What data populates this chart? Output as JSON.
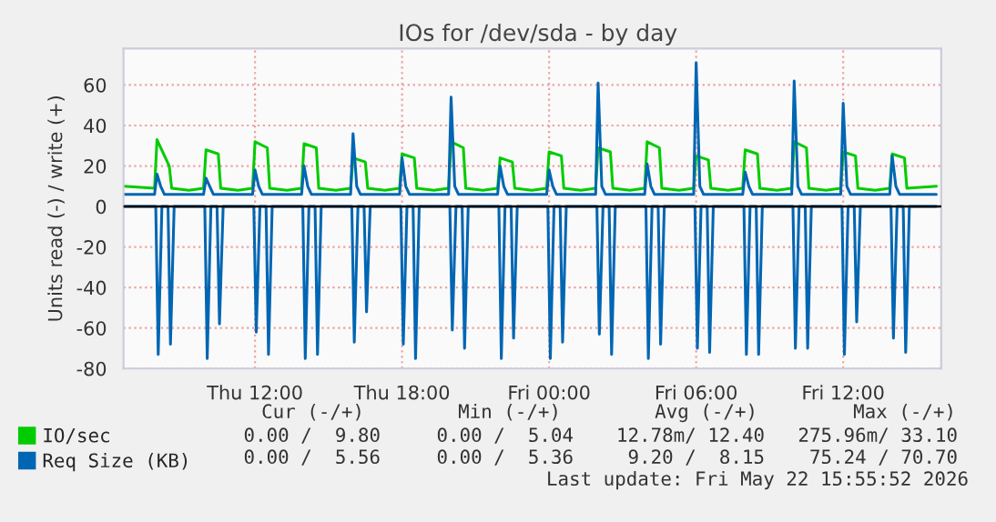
{
  "chart_data": {
    "type": "line",
    "title": "IOs for /dev/sda - by day",
    "ylabel": "Units read (-) / write (+)",
    "xlim": [
      "2026-05-21T06:38",
      "2026-05-22T16:00"
    ],
    "xticks": [
      {
        "value": "2026-05-21T12:00",
        "label": "Thu 12:00"
      },
      {
        "value": "2026-05-21T18:00",
        "label": "Thu 18:00"
      },
      {
        "value": "2026-05-22T00:00",
        "label": "Fri 00:00"
      },
      {
        "value": "2026-05-22T06:00",
        "label": "Fri 06:00"
      },
      {
        "value": "2026-05-22T12:00",
        "label": "Fri 12:00"
      }
    ],
    "ylim": [
      -80,
      78
    ],
    "yticks": [
      -80,
      -60,
      -40,
      -20,
      0,
      20,
      40,
      60
    ],
    "grid": true,
    "legend": "bottom",
    "ref_lines": [
      {
        "axis": "y",
        "value": 0,
        "color": "#000000"
      }
    ],
    "series": [
      {
        "name": "IO/sec",
        "color": "#00cc00",
        "x": [
          "2026-05-21T06:38",
          "2026-05-21T07:54",
          "2026-05-21T08:00",
          "2026-05-21T08:30",
          "2026-05-21T08:36",
          "2026-05-21T09:18",
          "2026-05-21T09:54",
          "2026-05-21T10:00",
          "2026-05-21T10:30",
          "2026-05-21T10:36",
          "2026-05-21T11:18",
          "2026-05-21T11:54",
          "2026-05-21T12:00",
          "2026-05-21T12:30",
          "2026-05-21T12:36",
          "2026-05-21T13:18",
          "2026-05-21T13:54",
          "2026-05-21T14:00",
          "2026-05-21T14:30",
          "2026-05-21T14:36",
          "2026-05-21T15:18",
          "2026-05-21T15:54",
          "2026-05-21T16:00",
          "2026-05-21T16:30",
          "2026-05-21T16:36",
          "2026-05-21T17:18",
          "2026-05-21T17:54",
          "2026-05-21T18:00",
          "2026-05-21T18:30",
          "2026-05-21T18:36",
          "2026-05-21T19:18",
          "2026-05-21T19:54",
          "2026-05-21T20:00",
          "2026-05-21T20:30",
          "2026-05-21T20:36",
          "2026-05-21T21:18",
          "2026-05-21T21:54",
          "2026-05-21T22:00",
          "2026-05-21T22:30",
          "2026-05-21T22:36",
          "2026-05-21T23:18",
          "2026-05-21T23:54",
          "2026-05-22T00:00",
          "2026-05-22T00:30",
          "2026-05-22T00:36",
          "2026-05-22T01:18",
          "2026-05-22T01:54",
          "2026-05-22T02:00",
          "2026-05-22T02:30",
          "2026-05-22T02:36",
          "2026-05-22T03:18",
          "2026-05-22T03:54",
          "2026-05-22T04:00",
          "2026-05-22T04:30",
          "2026-05-22T04:36",
          "2026-05-22T05:18",
          "2026-05-22T05:54",
          "2026-05-22T06:00",
          "2026-05-22T06:30",
          "2026-05-22T06:36",
          "2026-05-22T07:18",
          "2026-05-22T07:54",
          "2026-05-22T08:00",
          "2026-05-22T08:30",
          "2026-05-22T08:36",
          "2026-05-22T09:18",
          "2026-05-22T09:54",
          "2026-05-22T10:00",
          "2026-05-22T10:30",
          "2026-05-22T10:36",
          "2026-05-22T11:18",
          "2026-05-22T11:54",
          "2026-05-22T12:00",
          "2026-05-22T12:30",
          "2026-05-22T12:36",
          "2026-05-22T13:18",
          "2026-05-22T13:54",
          "2026-05-22T14:00",
          "2026-05-22T14:30",
          "2026-05-22T14:36",
          "2026-05-22T15:48"
        ],
        "values": [
          10,
          9,
          33,
          20,
          9,
          8,
          9,
          28,
          26,
          9,
          8,
          9,
          32,
          29,
          9,
          8,
          9,
          31,
          29,
          9,
          8,
          9,
          24,
          22,
          9,
          8,
          9,
          26,
          24,
          9,
          8,
          9,
          32,
          29,
          9,
          8,
          9,
          24,
          22,
          9,
          8,
          9,
          27,
          25,
          9,
          8,
          9,
          29,
          27,
          9,
          8,
          9,
          32,
          29,
          9,
          8,
          9,
          25,
          23,
          9,
          8,
          9,
          28,
          26,
          9,
          8,
          9,
          32,
          29,
          9,
          8,
          9,
          27,
          25,
          9,
          8,
          9,
          26,
          24,
          9,
          10
        ]
      },
      {
        "name": "Req Size (KB)",
        "color": "#0066b3",
        "x": [
          "2026-05-21T06:38",
          "2026-05-21T07:54",
          "2026-05-21T08:00",
          "2026-05-21T08:09",
          "2026-05-21T08:18",
          "2026-05-21T09:54",
          "2026-05-21T10:00",
          "2026-05-21T10:09",
          "2026-05-21T10:18",
          "2026-05-21T11:54",
          "2026-05-21T12:00",
          "2026-05-21T12:09",
          "2026-05-21T12:18",
          "2026-05-21T13:54",
          "2026-05-21T14:00",
          "2026-05-21T14:09",
          "2026-05-21T14:18",
          "2026-05-21T15:54",
          "2026-05-21T16:00",
          "2026-05-21T16:09",
          "2026-05-21T16:18",
          "2026-05-21T17:54",
          "2026-05-21T18:00",
          "2026-05-21T18:09",
          "2026-05-21T18:18",
          "2026-05-21T19:54",
          "2026-05-21T20:00",
          "2026-05-21T20:09",
          "2026-05-21T20:18",
          "2026-05-21T21:54",
          "2026-05-21T22:00",
          "2026-05-21T22:09",
          "2026-05-21T22:18",
          "2026-05-21T23:54",
          "2026-05-22T00:00",
          "2026-05-22T00:09",
          "2026-05-22T00:18",
          "2026-05-22T01:54",
          "2026-05-22T02:00",
          "2026-05-22T02:09",
          "2026-05-22T02:18",
          "2026-05-22T03:54",
          "2026-05-22T04:00",
          "2026-05-22T04:09",
          "2026-05-22T04:18",
          "2026-05-22T05:54",
          "2026-05-22T06:00",
          "2026-05-22T06:09",
          "2026-05-22T06:18",
          "2026-05-22T07:54",
          "2026-05-22T08:00",
          "2026-05-22T08:09",
          "2026-05-22T08:18",
          "2026-05-22T09:54",
          "2026-05-22T10:00",
          "2026-05-22T10:09",
          "2026-05-22T10:18",
          "2026-05-22T11:54",
          "2026-05-22T12:00",
          "2026-05-22T12:09",
          "2026-05-22T12:18",
          "2026-05-22T13:54",
          "2026-05-22T14:00",
          "2026-05-22T14:09",
          "2026-05-22T14:18",
          "2026-05-22T15:48"
        ],
        "values": [
          6,
          6,
          16,
          10,
          6,
          6,
          14,
          10,
          6,
          6,
          18,
          10,
          6,
          6,
          20,
          10,
          6,
          6,
          36,
          10,
          6,
          6,
          24,
          10,
          6,
          6,
          54,
          10,
          6,
          6,
          20,
          10,
          6,
          6,
          18,
          10,
          6,
          6,
          61,
          10,
          6,
          6,
          21,
          10,
          6,
          6,
          71,
          10,
          6,
          6,
          17,
          10,
          6,
          6,
          62,
          10,
          6,
          6,
          51,
          10,
          6,
          6,
          25,
          10,
          6,
          6
        ]
      },
      {
        "color": "#0066b3",
        "x": [
          "2026-05-21T06:38",
          "2026-05-21T07:57",
          "2026-05-21T08:03",
          "2026-05-21T08:12",
          "2026-05-21T08:27",
          "2026-05-21T08:33",
          "2026-05-21T08:42",
          "2026-05-21T09:57",
          "2026-05-21T10:03",
          "2026-05-21T10:12",
          "2026-05-21T10:27",
          "2026-05-21T10:33",
          "2026-05-21T10:42",
          "2026-05-21T11:57",
          "2026-05-21T12:03",
          "2026-05-21T12:12",
          "2026-05-21T12:27",
          "2026-05-21T12:33",
          "2026-05-21T12:42",
          "2026-05-21T13:57",
          "2026-05-21T14:03",
          "2026-05-21T14:12",
          "2026-05-21T14:27",
          "2026-05-21T14:33",
          "2026-05-21T14:42",
          "2026-05-21T15:57",
          "2026-05-21T16:03",
          "2026-05-21T16:12",
          "2026-05-21T16:27",
          "2026-05-21T16:33",
          "2026-05-21T16:42",
          "2026-05-21T17:57",
          "2026-05-21T18:03",
          "2026-05-21T18:12",
          "2026-05-21T18:27",
          "2026-05-21T18:33",
          "2026-05-21T18:42",
          "2026-05-21T19:57",
          "2026-05-21T20:03",
          "2026-05-21T20:12",
          "2026-05-21T20:27",
          "2026-05-21T20:33",
          "2026-05-21T20:42",
          "2026-05-21T21:57",
          "2026-05-21T22:03",
          "2026-05-21T22:12",
          "2026-05-21T22:27",
          "2026-05-21T22:33",
          "2026-05-21T22:42",
          "2026-05-21T23:57",
          "2026-05-22T00:03",
          "2026-05-22T00:12",
          "2026-05-22T00:27",
          "2026-05-22T00:33",
          "2026-05-22T00:42",
          "2026-05-22T01:57",
          "2026-05-22T02:03",
          "2026-05-22T02:12",
          "2026-05-22T02:27",
          "2026-05-22T02:33",
          "2026-05-22T02:42",
          "2026-05-22T03:57",
          "2026-05-22T04:03",
          "2026-05-22T04:12",
          "2026-05-22T04:27",
          "2026-05-22T04:33",
          "2026-05-22T04:42",
          "2026-05-22T05:57",
          "2026-05-22T06:03",
          "2026-05-22T06:12",
          "2026-05-22T06:27",
          "2026-05-22T06:33",
          "2026-05-22T06:42",
          "2026-05-22T07:57",
          "2026-05-22T08:03",
          "2026-05-22T08:12",
          "2026-05-22T08:27",
          "2026-05-22T08:33",
          "2026-05-22T08:42",
          "2026-05-22T09:57",
          "2026-05-22T10:03",
          "2026-05-22T10:12",
          "2026-05-22T10:27",
          "2026-05-22T10:33",
          "2026-05-22T10:42",
          "2026-05-22T11:57",
          "2026-05-22T12:03",
          "2026-05-22T12:12",
          "2026-05-22T12:27",
          "2026-05-22T12:33",
          "2026-05-22T12:42",
          "2026-05-22T13:57",
          "2026-05-22T14:03",
          "2026-05-22T14:12",
          "2026-05-22T14:27",
          "2026-05-22T14:33",
          "2026-05-22T14:42",
          "2026-05-22T15:48"
        ],
        "values": [
          0,
          0,
          -73,
          0,
          0,
          -68,
          0,
          0,
          -75,
          0,
          0,
          -58,
          0,
          0,
          -62,
          0,
          0,
          -73,
          0,
          0,
          -75,
          0,
          0,
          -73,
          0,
          0,
          -67,
          0,
          0,
          -52,
          0,
          0,
          -68,
          0,
          0,
          -75,
          0,
          0,
          -61,
          0,
          0,
          -70,
          0,
          0,
          -75,
          0,
          0,
          -65,
          0,
          0,
          -75,
          0,
          0,
          -67,
          0,
          0,
          -63,
          0,
          0,
          -73,
          0,
          0,
          -75,
          0,
          0,
          -68,
          0,
          0,
          -70,
          0,
          0,
          -72,
          0,
          0,
          -73,
          0,
          0,
          -73,
          0,
          0,
          -70,
          0,
          0,
          -70,
          0,
          0,
          -73,
          0,
          0,
          -57,
          0,
          0,
          -65,
          0,
          0,
          -72,
          0,
          0
        ]
      }
    ],
    "annotations": [
      "Cur (-/+)",
      "Min (-/+)",
      "Avg (-/+)",
      "Max (-/+)",
      "0.00 /  9.80",
      "0.00 /  5.04",
      "12.78m/ 12.40",
      "275.96m/ 33.10",
      "0.00 /  5.56",
      "0.00 /  5.36",
      "9.20 /  8.15",
      "75.24 / 70.70",
      "Last update: Fri May 22 15:55:52 2026"
    ]
  }
}
